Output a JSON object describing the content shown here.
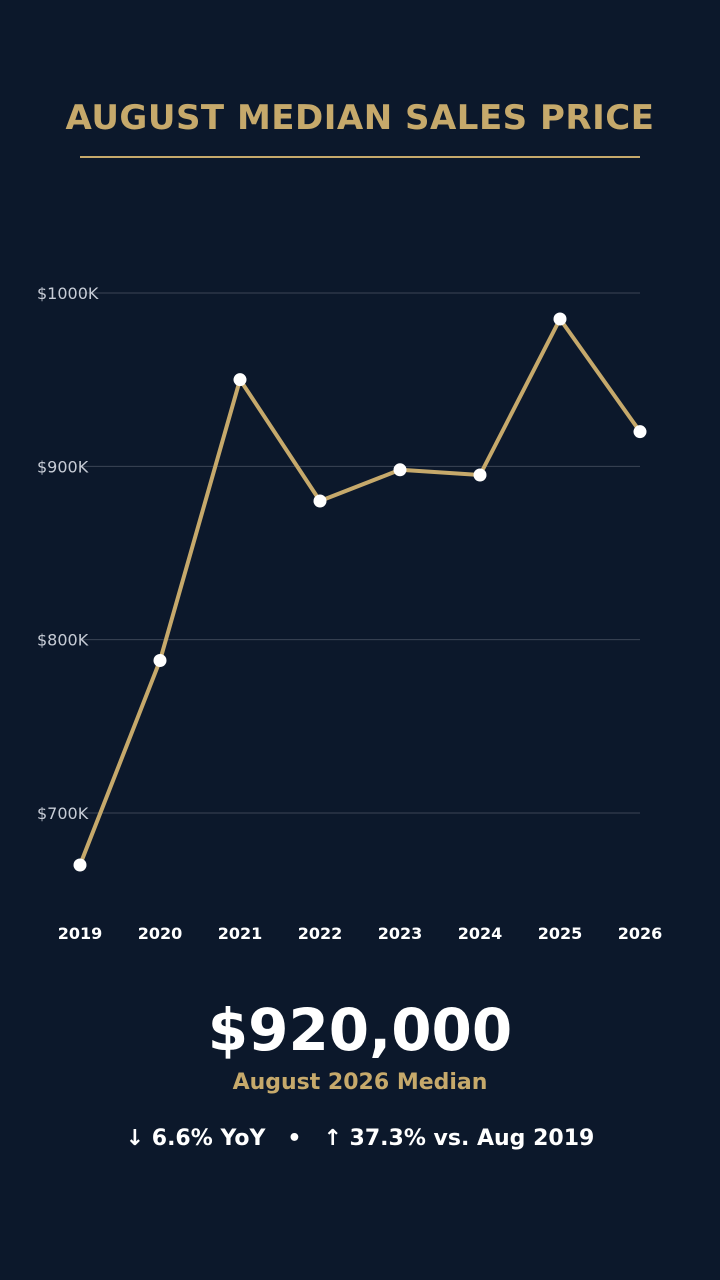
{
  "title": "AUGUST MEDIAN SALES PRICE",
  "colors": {
    "background": "#0c182b",
    "accent": "#c6a96b",
    "line": "#c6a96b",
    "point": "#ffffff",
    "grid": "#3b4556"
  },
  "chart_data": {
    "type": "line",
    "title": "AUGUST MEDIAN SALES PRICE",
    "xlabel": "",
    "ylabel": "",
    "categories": [
      "2019",
      "2020",
      "2021",
      "2022",
      "2023",
      "2024",
      "2025",
      "2026"
    ],
    "series": [
      {
        "values": [
          670000,
          788000,
          950000,
          880000,
          898000,
          895000,
          985000,
          920000
        ]
      }
    ],
    "yticks": [
      {
        "value": 700000,
        "label": "$700K"
      },
      {
        "value": 800000,
        "label": "$800K"
      },
      {
        "value": 900000,
        "label": "$900K"
      },
      {
        "value": 1000000,
        "label": "$1000K"
      }
    ],
    "grid": true,
    "legend": "none"
  },
  "summary": {
    "value": "$920,000",
    "label": "August 2026 Median",
    "yoy": "↓ 6.6% YoY",
    "separator": "•",
    "since": "↑ 37.3% vs. Aug 2019"
  }
}
